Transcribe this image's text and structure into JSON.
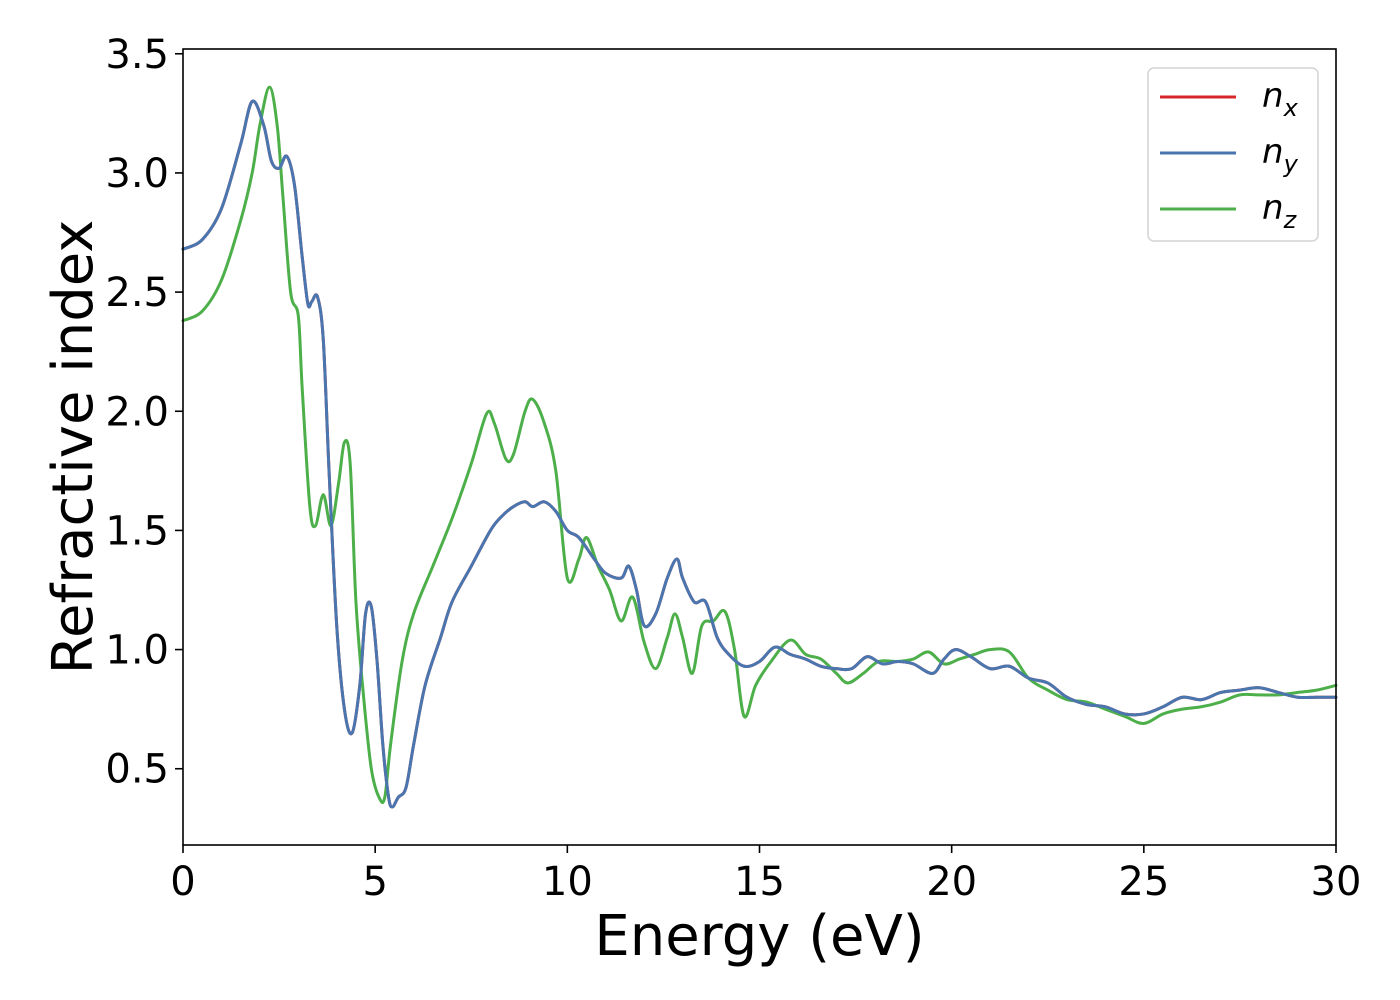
{
  "chart_data": {
    "type": "line",
    "title": "",
    "xlabel": "Energy (eV)",
    "ylabel": "Refractive index",
    "xlim": [
      0,
      30
    ],
    "ylim": [
      0.18,
      3.52
    ],
    "xticks": [
      0,
      5,
      10,
      15,
      20,
      25,
      30
    ],
    "xtick_labels": [
      "0",
      "5",
      "10",
      "15",
      "20",
      "25",
      "30"
    ],
    "yticks": [
      0.5,
      1.0,
      1.5,
      2.0,
      2.5,
      3.0,
      3.5
    ],
    "ytick_labels": [
      "0.5",
      "1.0",
      "1.5",
      "2.0",
      "2.5",
      "3.0",
      "3.5"
    ],
    "grid": false,
    "legend_position": "top-right",
    "series": [
      {
        "name": "n_x",
        "legend_base": "n",
        "legend_sub": "x",
        "color": "#d62728",
        "points": [
          [
            0,
            2.68
          ],
          [
            0.5,
            2.72
          ],
          [
            1.0,
            2.85
          ],
          [
            1.5,
            3.12
          ],
          [
            1.8,
            3.3
          ],
          [
            2.1,
            3.2
          ],
          [
            2.3,
            3.05
          ],
          [
            2.5,
            3.02
          ],
          [
            2.7,
            3.07
          ],
          [
            2.9,
            2.95
          ],
          [
            3.1,
            2.65
          ],
          [
            3.25,
            2.45
          ],
          [
            3.35,
            2.46
          ],
          [
            3.5,
            2.48
          ],
          [
            3.65,
            2.3
          ],
          [
            3.8,
            1.75
          ],
          [
            4.0,
            1.1
          ],
          [
            4.2,
            0.75
          ],
          [
            4.4,
            0.65
          ],
          [
            4.6,
            0.85
          ],
          [
            4.75,
            1.15
          ],
          [
            4.9,
            1.18
          ],
          [
            5.05,
            0.95
          ],
          [
            5.2,
            0.6
          ],
          [
            5.35,
            0.38
          ],
          [
            5.45,
            0.34
          ],
          [
            5.6,
            0.38
          ],
          [
            5.8,
            0.42
          ],
          [
            6.0,
            0.6
          ],
          [
            6.3,
            0.85
          ],
          [
            6.7,
            1.05
          ],
          [
            7.0,
            1.2
          ],
          [
            7.5,
            1.35
          ],
          [
            8.0,
            1.5
          ],
          [
            8.3,
            1.56
          ],
          [
            8.6,
            1.6
          ],
          [
            8.9,
            1.62
          ],
          [
            9.1,
            1.6
          ],
          [
            9.4,
            1.62
          ],
          [
            9.7,
            1.58
          ],
          [
            10.0,
            1.5
          ],
          [
            10.3,
            1.47
          ],
          [
            10.7,
            1.38
          ],
          [
            11.0,
            1.32
          ],
          [
            11.4,
            1.3
          ],
          [
            11.6,
            1.35
          ],
          [
            11.8,
            1.25
          ],
          [
            12.0,
            1.1
          ],
          [
            12.3,
            1.15
          ],
          [
            12.6,
            1.3
          ],
          [
            12.85,
            1.38
          ],
          [
            13.0,
            1.3
          ],
          [
            13.3,
            1.2
          ],
          [
            13.6,
            1.2
          ],
          [
            13.9,
            1.05
          ],
          [
            14.2,
            0.98
          ],
          [
            14.6,
            0.93
          ],
          [
            15.0,
            0.95
          ],
          [
            15.4,
            1.01
          ],
          [
            15.8,
            0.98
          ],
          [
            16.2,
            0.96
          ],
          [
            16.6,
            0.93
          ],
          [
            17.0,
            0.92
          ],
          [
            17.4,
            0.92
          ],
          [
            17.8,
            0.97
          ],
          [
            18.2,
            0.94
          ],
          [
            18.6,
            0.95
          ],
          [
            19.0,
            0.94
          ],
          [
            19.5,
            0.9
          ],
          [
            19.8,
            0.96
          ],
          [
            20.1,
            1.0
          ],
          [
            20.5,
            0.97
          ],
          [
            21.0,
            0.92
          ],
          [
            21.5,
            0.93
          ],
          [
            22.0,
            0.88
          ],
          [
            22.5,
            0.86
          ],
          [
            23.0,
            0.8
          ],
          [
            23.5,
            0.77
          ],
          [
            24.0,
            0.76
          ],
          [
            24.5,
            0.73
          ],
          [
            25.0,
            0.73
          ],
          [
            25.5,
            0.76
          ],
          [
            26.0,
            0.8
          ],
          [
            26.5,
            0.79
          ],
          [
            27.0,
            0.82
          ],
          [
            27.5,
            0.83
          ],
          [
            28.0,
            0.84
          ],
          [
            28.5,
            0.82
          ],
          [
            29.0,
            0.8
          ],
          [
            29.5,
            0.8
          ],
          [
            30.0,
            0.8
          ]
        ]
      },
      {
        "name": "n_y",
        "legend_base": "n",
        "legend_sub": "y",
        "color": "#4a76b0",
        "points": [
          [
            0,
            2.68
          ],
          [
            0.5,
            2.72
          ],
          [
            1.0,
            2.85
          ],
          [
            1.5,
            3.12
          ],
          [
            1.8,
            3.3
          ],
          [
            2.1,
            3.2
          ],
          [
            2.3,
            3.05
          ],
          [
            2.5,
            3.02
          ],
          [
            2.7,
            3.07
          ],
          [
            2.9,
            2.95
          ],
          [
            3.1,
            2.65
          ],
          [
            3.25,
            2.45
          ],
          [
            3.35,
            2.46
          ],
          [
            3.5,
            2.48
          ],
          [
            3.65,
            2.3
          ],
          [
            3.8,
            1.75
          ],
          [
            4.0,
            1.1
          ],
          [
            4.2,
            0.75
          ],
          [
            4.4,
            0.65
          ],
          [
            4.6,
            0.85
          ],
          [
            4.75,
            1.15
          ],
          [
            4.9,
            1.18
          ],
          [
            5.05,
            0.95
          ],
          [
            5.2,
            0.6
          ],
          [
            5.35,
            0.38
          ],
          [
            5.45,
            0.34
          ],
          [
            5.6,
            0.38
          ],
          [
            5.8,
            0.42
          ],
          [
            6.0,
            0.6
          ],
          [
            6.3,
            0.85
          ],
          [
            6.7,
            1.05
          ],
          [
            7.0,
            1.2
          ],
          [
            7.5,
            1.35
          ],
          [
            8.0,
            1.5
          ],
          [
            8.3,
            1.56
          ],
          [
            8.6,
            1.6
          ],
          [
            8.9,
            1.62
          ],
          [
            9.1,
            1.6
          ],
          [
            9.4,
            1.62
          ],
          [
            9.7,
            1.58
          ],
          [
            10.0,
            1.5
          ],
          [
            10.3,
            1.47
          ],
          [
            10.7,
            1.38
          ],
          [
            11.0,
            1.32
          ],
          [
            11.4,
            1.3
          ],
          [
            11.6,
            1.35
          ],
          [
            11.8,
            1.25
          ],
          [
            12.0,
            1.1
          ],
          [
            12.3,
            1.15
          ],
          [
            12.6,
            1.3
          ],
          [
            12.85,
            1.38
          ],
          [
            13.0,
            1.3
          ],
          [
            13.3,
            1.2
          ],
          [
            13.6,
            1.2
          ],
          [
            13.9,
            1.05
          ],
          [
            14.2,
            0.98
          ],
          [
            14.6,
            0.93
          ],
          [
            15.0,
            0.95
          ],
          [
            15.4,
            1.01
          ],
          [
            15.8,
            0.98
          ],
          [
            16.2,
            0.96
          ],
          [
            16.6,
            0.93
          ],
          [
            17.0,
            0.92
          ],
          [
            17.4,
            0.92
          ],
          [
            17.8,
            0.97
          ],
          [
            18.2,
            0.94
          ],
          [
            18.6,
            0.95
          ],
          [
            19.0,
            0.94
          ],
          [
            19.5,
            0.9
          ],
          [
            19.8,
            0.96
          ],
          [
            20.1,
            1.0
          ],
          [
            20.5,
            0.97
          ],
          [
            21.0,
            0.92
          ],
          [
            21.5,
            0.93
          ],
          [
            22.0,
            0.88
          ],
          [
            22.5,
            0.86
          ],
          [
            23.0,
            0.8
          ],
          [
            23.5,
            0.77
          ],
          [
            24.0,
            0.76
          ],
          [
            24.5,
            0.73
          ],
          [
            25.0,
            0.73
          ],
          [
            25.5,
            0.76
          ],
          [
            26.0,
            0.8
          ],
          [
            26.5,
            0.79
          ],
          [
            27.0,
            0.82
          ],
          [
            27.5,
            0.83
          ],
          [
            28.0,
            0.84
          ],
          [
            28.5,
            0.82
          ],
          [
            29.0,
            0.8
          ],
          [
            29.5,
            0.8
          ],
          [
            30.0,
            0.8
          ]
        ]
      },
      {
        "name": "n_z",
        "legend_base": "n",
        "legend_sub": "z",
        "color": "#4daf4a",
        "points": [
          [
            0,
            2.38
          ],
          [
            0.5,
            2.42
          ],
          [
            1.0,
            2.55
          ],
          [
            1.5,
            2.8
          ],
          [
            1.8,
            3.0
          ],
          [
            2.0,
            3.2
          ],
          [
            2.25,
            3.36
          ],
          [
            2.45,
            3.2
          ],
          [
            2.6,
            2.9
          ],
          [
            2.8,
            2.5
          ],
          [
            3.0,
            2.4
          ],
          [
            3.1,
            2.1
          ],
          [
            3.3,
            1.6
          ],
          [
            3.45,
            1.52
          ],
          [
            3.65,
            1.65
          ],
          [
            3.85,
            1.52
          ],
          [
            4.05,
            1.7
          ],
          [
            4.2,
            1.87
          ],
          [
            4.35,
            1.78
          ],
          [
            4.5,
            1.2
          ],
          [
            4.7,
            0.8
          ],
          [
            4.9,
            0.5
          ],
          [
            5.1,
            0.38
          ],
          [
            5.25,
            0.38
          ],
          [
            5.4,
            0.6
          ],
          [
            5.7,
            0.95
          ],
          [
            6.0,
            1.15
          ],
          [
            6.5,
            1.35
          ],
          [
            7.0,
            1.55
          ],
          [
            7.5,
            1.78
          ],
          [
            7.9,
            1.99
          ],
          [
            8.1,
            1.95
          ],
          [
            8.4,
            1.8
          ],
          [
            8.6,
            1.82
          ],
          [
            8.9,
            2.0
          ],
          [
            9.1,
            2.05
          ],
          [
            9.4,
            1.95
          ],
          [
            9.7,
            1.75
          ],
          [
            10.0,
            1.3
          ],
          [
            10.3,
            1.38
          ],
          [
            10.5,
            1.47
          ],
          [
            10.8,
            1.35
          ],
          [
            11.1,
            1.25
          ],
          [
            11.4,
            1.12
          ],
          [
            11.7,
            1.22
          ],
          [
            12.0,
            1.03
          ],
          [
            12.3,
            0.92
          ],
          [
            12.6,
            1.05
          ],
          [
            12.8,
            1.15
          ],
          [
            13.0,
            1.05
          ],
          [
            13.25,
            0.9
          ],
          [
            13.5,
            1.1
          ],
          [
            13.8,
            1.12
          ],
          [
            14.1,
            1.16
          ],
          [
            14.35,
            1.0
          ],
          [
            14.6,
            0.72
          ],
          [
            14.9,
            0.85
          ],
          [
            15.3,
            0.95
          ],
          [
            15.8,
            1.04
          ],
          [
            16.2,
            0.98
          ],
          [
            16.6,
            0.96
          ],
          [
            17.0,
            0.9
          ],
          [
            17.3,
            0.86
          ],
          [
            17.7,
            0.9
          ],
          [
            18.1,
            0.95
          ],
          [
            18.6,
            0.95
          ],
          [
            19.0,
            0.96
          ],
          [
            19.4,
            0.99
          ],
          [
            19.8,
            0.94
          ],
          [
            20.2,
            0.96
          ],
          [
            20.6,
            0.98
          ],
          [
            21.0,
            1.0
          ],
          [
            21.5,
            0.99
          ],
          [
            22.0,
            0.88
          ],
          [
            22.5,
            0.83
          ],
          [
            23.0,
            0.79
          ],
          [
            23.5,
            0.78
          ],
          [
            24.0,
            0.75
          ],
          [
            24.5,
            0.72
          ],
          [
            25.0,
            0.69
          ],
          [
            25.5,
            0.73
          ],
          [
            26.0,
            0.75
          ],
          [
            26.5,
            0.76
          ],
          [
            27.0,
            0.78
          ],
          [
            27.5,
            0.81
          ],
          [
            28.0,
            0.81
          ],
          [
            28.5,
            0.81
          ],
          [
            29.0,
            0.82
          ],
          [
            29.5,
            0.83
          ],
          [
            30.0,
            0.85
          ]
        ]
      }
    ]
  }
}
